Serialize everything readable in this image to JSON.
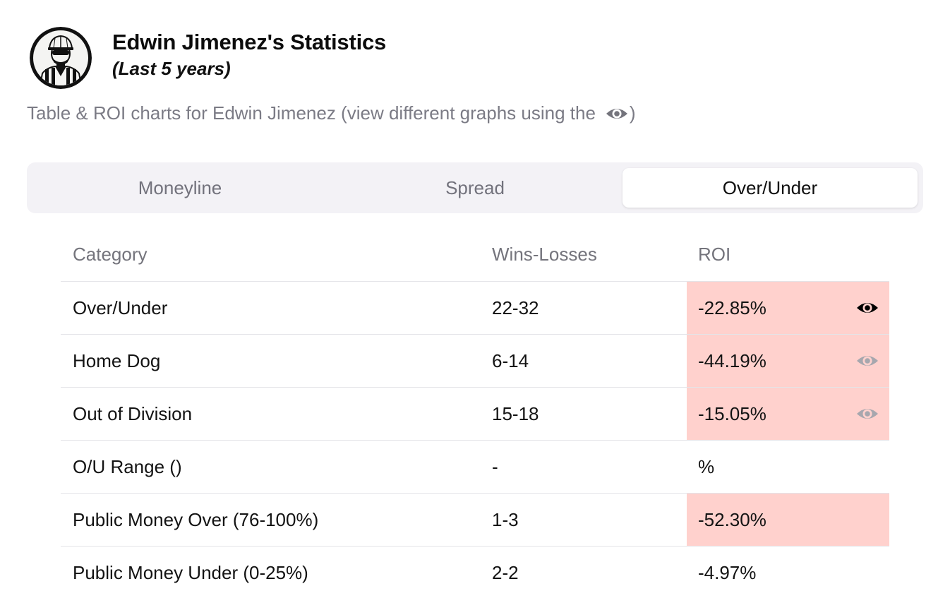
{
  "header": {
    "title": "Edwin Jimenez's Statistics",
    "subtitle": "(Last 5 years)",
    "description": "Table & ROI charts for Edwin Jimenez (view different graphs using the",
    "description_close": ")",
    "avatar_icon": "referee-avatar-icon"
  },
  "tabs": [
    {
      "label": "Moneyline",
      "active": false
    },
    {
      "label": "Spread",
      "active": false
    },
    {
      "label": "Over/Under",
      "active": true
    }
  ],
  "table": {
    "columns": [
      "Category",
      "Wins-Losses",
      "ROI"
    ],
    "rows": [
      {
        "category": "Over/Under",
        "record": "22-32",
        "roi": "-22.85%",
        "highlight": true,
        "eye": "active"
      },
      {
        "category": "Home Dog",
        "record": "6-14",
        "roi": "-44.19%",
        "highlight": true,
        "eye": "inactive"
      },
      {
        "category": "Out of Division",
        "record": "15-18",
        "roi": "-15.05%",
        "highlight": true,
        "eye": "inactive"
      },
      {
        "category": "O/U Range ()",
        "record": "-",
        "roi": "%",
        "highlight": false,
        "eye": "none"
      },
      {
        "category": "Public Money Over (76-100%)",
        "record": "1-3",
        "roi": "-52.30%",
        "highlight": true,
        "eye": "none"
      },
      {
        "category": "Public Money Under (0-25%)",
        "record": "2-2",
        "roi": "-4.97%",
        "highlight": false,
        "eye": "none"
      }
    ]
  },
  "colors": {
    "negative_highlight": "#ffd1cd",
    "eye_active": "#000000",
    "eye_inactive": "#9a9aa3",
    "tab_bg": "#f3f2f6"
  }
}
